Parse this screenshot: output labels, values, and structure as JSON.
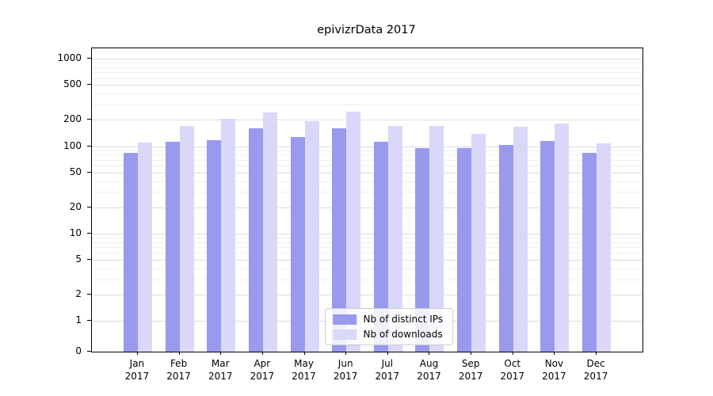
{
  "title": "epivizrData 2017",
  "chart_data": {
    "type": "bar",
    "title": "epivizrData 2017",
    "categories": [
      "Jan",
      "Feb",
      "Mar",
      "Apr",
      "May",
      "Jun",
      "Jul",
      "Aug",
      "Sep",
      "Oct",
      "Nov",
      "Dec"
    ],
    "category_year": "2017",
    "series": [
      {
        "name": "Nb of distinct IPs",
        "color": "#9999ee",
        "values": [
          84,
          112,
          118,
          160,
          128,
          160,
          113,
          96,
          96,
          104,
          114,
          84
        ]
      },
      {
        "name": "Nb of downloads",
        "color": "#d9d8f8",
        "values": [
          110,
          172,
          205,
          245,
          192,
          250,
          172,
          172,
          138,
          168,
          182,
          108
        ]
      }
    ],
    "xlabel": "",
    "ylabel": "",
    "yscale": "symlog",
    "yticks": [
      0,
      1,
      2,
      5,
      10,
      20,
      50,
      100,
      200,
      500,
      1000
    ],
    "ylim": [
      0,
      1320
    ],
    "grid": true,
    "legend_position": "lower center"
  }
}
